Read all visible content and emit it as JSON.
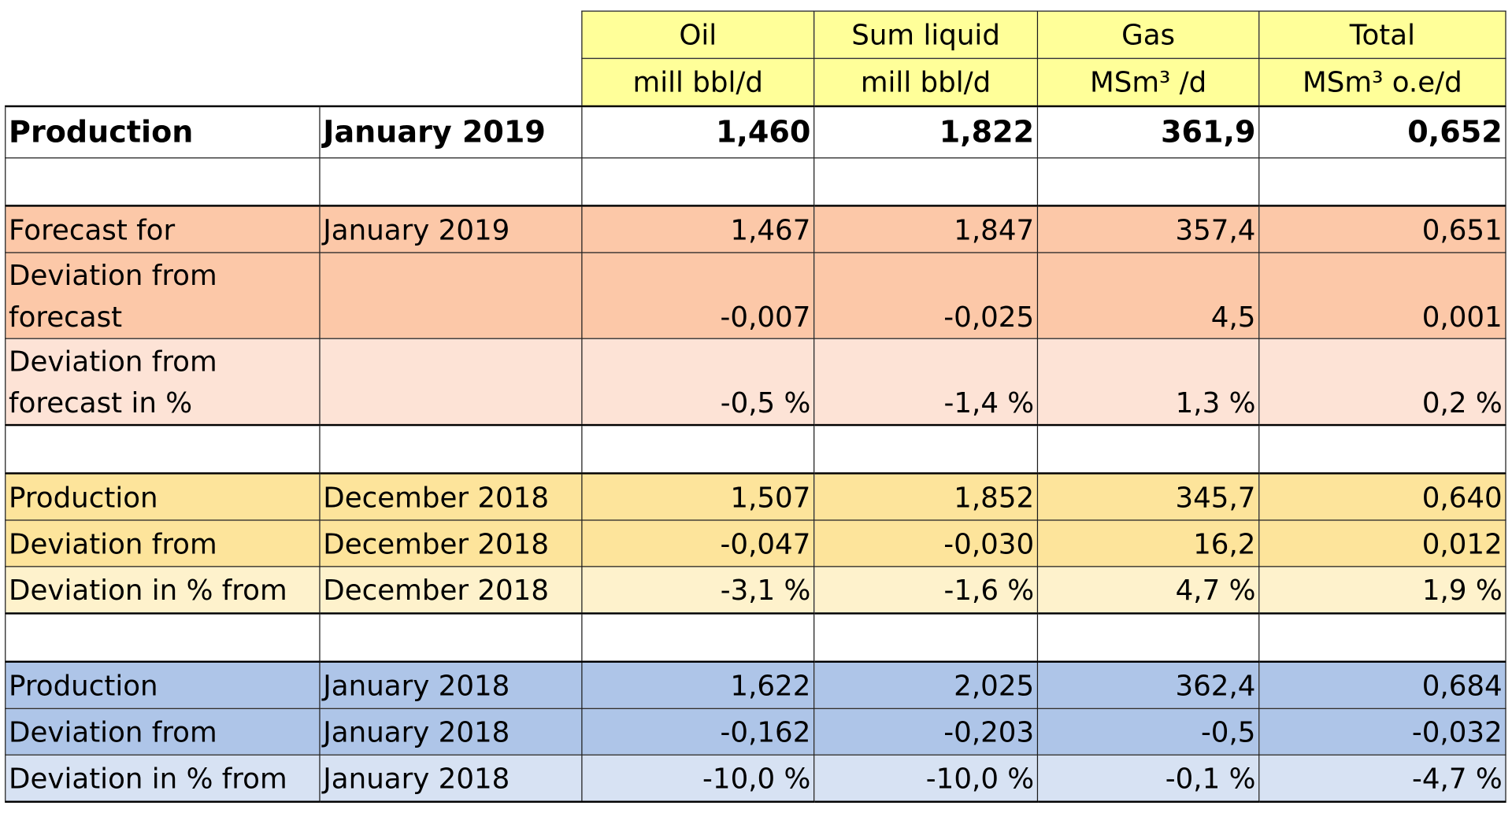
{
  "header": {
    "columns": [
      {
        "name": "Oil",
        "unit": "mill bbl/d"
      },
      {
        "name": "Sum liquid",
        "unit": "mill bbl/d"
      },
      {
        "name": "Gas",
        "unit": "MSm³ /d"
      },
      {
        "name": "Total",
        "unit": "MSm³ o.e/d"
      }
    ]
  },
  "main": {
    "label": "Production",
    "period": "January 2019",
    "values": [
      "1,460",
      "1,822",
      "361,9",
      "0,652"
    ]
  },
  "forecast": {
    "rows": [
      {
        "label": "Forecast for",
        "period": "January 2019",
        "values": [
          "1,467",
          "1,847",
          "357,4",
          "0,651"
        ]
      },
      {
        "label": "Deviation from forecast",
        "period": "",
        "values": [
          "-0,007",
          "-0,025",
          "4,5",
          "0,001"
        ]
      },
      {
        "label": "Deviation from forecast in %",
        "period": "",
        "values": [
          "-0,5 %",
          "-1,4 %",
          "1,3 %",
          "0,2 %"
        ]
      }
    ]
  },
  "previous_month": {
    "rows": [
      {
        "label": "Production",
        "period": "December 2018",
        "values": [
          "1,507",
          "1,852",
          "345,7",
          "0,640"
        ]
      },
      {
        "label": "Deviation from",
        "period": "December 2018",
        "values": [
          "-0,047",
          "-0,030",
          "16,2",
          "0,012"
        ]
      },
      {
        "label": "Deviation  in % from",
        "period": "December 2018",
        "values": [
          "-3,1 %",
          "-1,6 %",
          "4,7 %",
          "1,9 %"
        ]
      }
    ]
  },
  "previous_year": {
    "rows": [
      {
        "label": "Production",
        "period": "January 2018",
        "values": [
          "1,622",
          "2,025",
          "362,4",
          "0,684"
        ]
      },
      {
        "label": "Deviation from",
        "period": "January 2018",
        "values": [
          "-0,162",
          "-0,203",
          "-0,5",
          "-0,032"
        ]
      },
      {
        "label": "Deviation  in % from",
        "period": "January 2018",
        "values": [
          "-10,0 %",
          "-10,0 %",
          "-0,1 %",
          "-4,7 %"
        ]
      }
    ]
  }
}
